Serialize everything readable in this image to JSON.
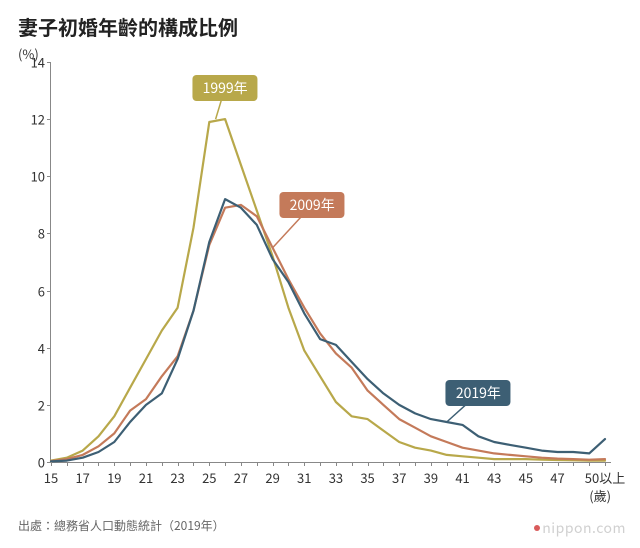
{
  "title": "妻子初婚年齡的構成比例",
  "y_unit_label": "(%)",
  "x_unit_label": "(歲)",
  "source_line": "出處：總務省人口動態統計（2019年）",
  "brand": "nippon.com",
  "chart": {
    "type": "line",
    "background_color": "#ffffff",
    "axis_color": "#888888",
    "tick_fontsize": 13,
    "title_fontsize": 20,
    "line_width": 2.2,
    "ylim": [
      0,
      14
    ],
    "yticks": [
      0,
      2,
      4,
      6,
      8,
      10,
      12,
      14
    ],
    "x_values": [
      15,
      16,
      17,
      18,
      19,
      20,
      21,
      22,
      23,
      24,
      25,
      26,
      27,
      28,
      29,
      30,
      31,
      32,
      33,
      34,
      35,
      36,
      37,
      38,
      39,
      40,
      41,
      42,
      43,
      44,
      45,
      46,
      47,
      48,
      49,
      50
    ],
    "xtick_labels": [
      "15",
      "",
      "17",
      "",
      "19",
      "",
      "21",
      "",
      "23",
      "",
      "25",
      "",
      "27",
      "",
      "29",
      "",
      "31",
      "",
      "33",
      "",
      "35",
      "",
      "37",
      "",
      "39",
      "",
      "41",
      "",
      "43",
      "",
      "45",
      "",
      "47",
      "",
      "",
      "50以上"
    ],
    "series": [
      {
        "name": "1999年",
        "color": "#b8a84a",
        "callout_bg": "#b8a84a",
        "callout_text": "#ffffff",
        "callout_xy": [
          26,
          13.1
        ],
        "leader_to_xy": [
          25.4,
          12.0
        ],
        "values": [
          0.05,
          0.15,
          0.4,
          0.9,
          1.6,
          2.6,
          3.6,
          4.6,
          5.4,
          8.2,
          11.9,
          12.0,
          10.4,
          8.8,
          7.2,
          5.4,
          3.9,
          3.0,
          2.1,
          1.6,
          1.5,
          1.1,
          0.7,
          0.5,
          0.4,
          0.25,
          0.2,
          0.15,
          0.1,
          0.1,
          0.1,
          0.08,
          0.07,
          0.06,
          0.05,
          0.05
        ]
      },
      {
        "name": "2009年",
        "color": "#c47a5a",
        "callout_bg": "#c47a5a",
        "callout_text": "#ffffff",
        "callout_xy": [
          31.5,
          9.0
        ],
        "leader_to_xy": [
          29,
          7.5
        ],
        "values": [
          0.03,
          0.1,
          0.25,
          0.55,
          1.0,
          1.8,
          2.2,
          3.0,
          3.7,
          5.3,
          7.6,
          8.9,
          9.0,
          8.6,
          7.5,
          6.4,
          5.4,
          4.5,
          3.8,
          3.3,
          2.5,
          2.0,
          1.5,
          1.2,
          0.9,
          0.7,
          0.5,
          0.4,
          0.3,
          0.25,
          0.2,
          0.15,
          0.12,
          0.1,
          0.08,
          0.1
        ]
      },
      {
        "name": "2019年",
        "color": "#3d5f74",
        "callout_bg": "#3d5f74",
        "callout_text": "#ffffff",
        "callout_xy": [
          42,
          2.4
        ],
        "leader_to_xy": [
          40,
          1.4
        ],
        "values": [
          0.02,
          0.05,
          0.15,
          0.35,
          0.7,
          1.4,
          2.0,
          2.4,
          3.6,
          5.3,
          7.7,
          9.2,
          8.9,
          8.3,
          7.1,
          6.3,
          5.2,
          4.3,
          4.1,
          3.5,
          2.9,
          2.4,
          2.0,
          1.7,
          1.5,
          1.4,
          1.3,
          0.9,
          0.7,
          0.6,
          0.5,
          0.4,
          0.35,
          0.35,
          0.3,
          0.8
        ]
      }
    ]
  }
}
